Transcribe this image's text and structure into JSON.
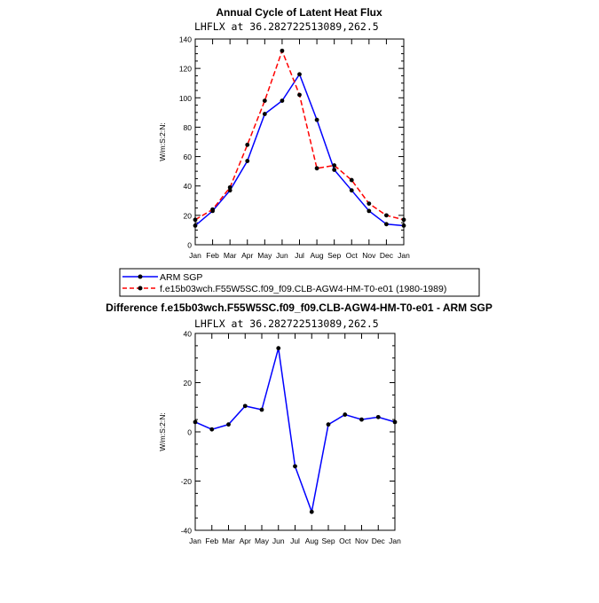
{
  "chart_data": [
    {
      "type": "line",
      "title": "Annual Cycle of Latent Heat Flux",
      "subtitle": "LHFLX at 36.282722513089,262.5",
      "ylabel": "W/m:S:2:N:",
      "xlabel": "",
      "ylim": [
        0,
        140
      ],
      "yticks": [
        0,
        20,
        40,
        60,
        80,
        100,
        120,
        140
      ],
      "categories": [
        "Jan",
        "Feb",
        "Mar",
        "Apr",
        "May",
        "Jun",
        "Jul",
        "Aug",
        "Sep",
        "Oct",
        "Nov",
        "Dec",
        "Jan"
      ],
      "series": [
        {
          "name": "ARM SGP",
          "color": "#0000ff",
          "dash": "solid",
          "values": [
            13,
            23,
            37,
            57,
            89,
            98,
            116,
            85,
            51,
            37,
            23,
            14,
            13
          ]
        },
        {
          "name": "f.e15b03wch.F55W5SC.f09_f09.CLB-AGW4-HM-T0-e01 (1980-1989)",
          "color": "#ff0000",
          "dash": "dashed",
          "values": [
            17,
            24,
            39,
            68,
            98,
            132,
            102,
            52,
            54,
            44,
            28,
            20,
            17
          ]
        }
      ],
      "legend": "below"
    },
    {
      "type": "line",
      "title": "Difference f.e15b03wch.F55W5SC.f09_f09.CLB-AGW4-HM-T0-e01 - ARM SGP",
      "subtitle": "LHFLX at 36.282722513089,262.5",
      "ylabel": "W/m:S:2:N:",
      "xlabel": "",
      "ylim": [
        -40,
        40
      ],
      "yticks": [
        -40,
        -20,
        0,
        20,
        40
      ],
      "categories": [
        "Jan",
        "Feb",
        "Mar",
        "Apr",
        "May",
        "Jun",
        "Jul",
        "Aug",
        "Sep",
        "Oct",
        "Nov",
        "Dec",
        "Jan"
      ],
      "series": [
        {
          "color": "#0000ff",
          "dash": "solid",
          "values": [
            4,
            1,
            3,
            10.5,
            9,
            34,
            -14,
            -32.5,
            3,
            7,
            5,
            6,
            4
          ]
        }
      ]
    }
  ]
}
